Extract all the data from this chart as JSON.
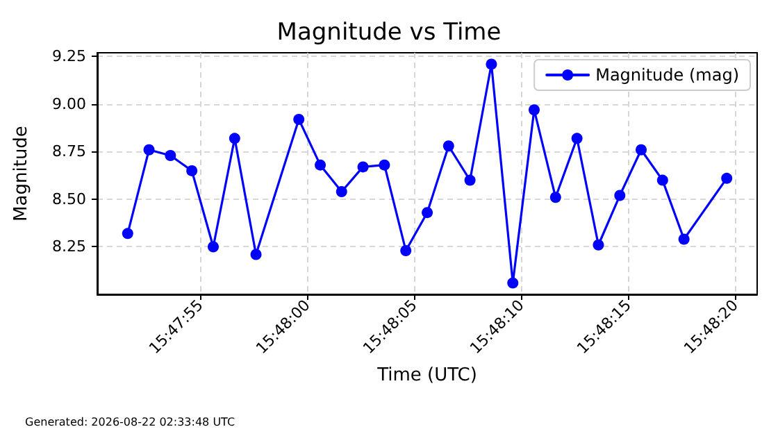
{
  "chart_data": {
    "type": "line",
    "title": "Magnitude vs Time",
    "xlabel": "Time (UTC)",
    "ylabel": "Magnitude",
    "annotations": [
      "Generated: 2026-08-22 02:33:48 UTC"
    ],
    "x": [
      15.797667,
      15.797944,
      15.798222,
      15.7985,
      15.798778,
      15.799056,
      15.799333,
      15.799889,
      15.800167,
      15.800444,
      15.800722,
      15.801,
      15.801278,
      15.801556,
      15.801833,
      15.802111,
      15.802389,
      15.802667,
      15.802944,
      15.803222,
      15.8035,
      15.803778,
      15.804056,
      15.804333,
      15.804611,
      15.804889,
      15.805444
    ],
    "series": [
      {
        "name": "Magnitude (mag)",
        "color": "#0000ff",
        "values": [
          8.32,
          8.76,
          8.73,
          8.65,
          8.25,
          8.82,
          8.21,
          8.92,
          8.68,
          8.54,
          8.67,
          8.68,
          8.23,
          8.43,
          8.78,
          8.6,
          9.21,
          8.06,
          8.97,
          8.51,
          8.82,
          8.26,
          8.52,
          8.76,
          8.6,
          8.29,
          8.61
        ]
      }
    ],
    "xlim": [
      15.797272,
      15.805839
    ],
    "xticks": [
      {
        "value": 15.798611,
        "label": "15:47:55"
      },
      {
        "value": 15.8,
        "label": "15:48:00"
      },
      {
        "value": 15.801389,
        "label": "15:48:05"
      },
      {
        "value": 15.802778,
        "label": "15:48:10"
      },
      {
        "value": 15.804167,
        "label": "15:48:15"
      },
      {
        "value": 15.805556,
        "label": "15:48:20"
      }
    ],
    "ylim": [
      8.0,
      9.27
    ],
    "yticks": [
      8.25,
      {
        "value": 8.5,
        "label": "8.50"
      },
      8.75,
      {
        "value": 9.0,
        "label": "9.00"
      },
      9.25
    ],
    "grid": true,
    "legend": "top right",
    "marker": "circle",
    "line_style": "solid"
  }
}
